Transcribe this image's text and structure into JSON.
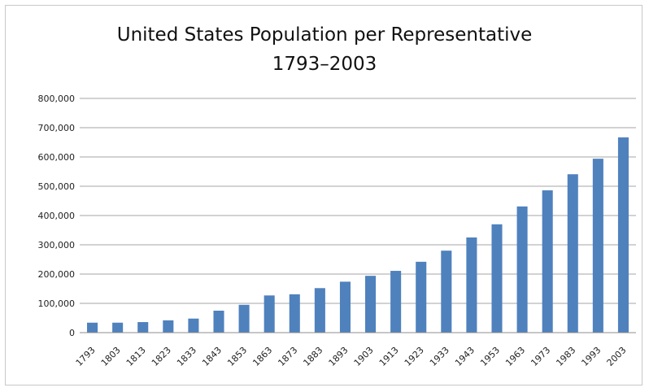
{
  "chart_data": {
    "type": "bar",
    "title": "United States Population per Representative",
    "subtitle": "1793–2003",
    "xlabel": "",
    "ylabel": "",
    "ylim": [
      0,
      800000
    ],
    "yticks": [
      0,
      100000,
      200000,
      300000,
      400000,
      500000,
      600000,
      700000,
      800000
    ],
    "ytick_labels": [
      "0",
      "100,000",
      "200,000",
      "300,000",
      "400,000",
      "500,000",
      "600,000",
      "700,000",
      "800,000"
    ],
    "grid": true,
    "legend": "none",
    "categories": [
      "1793",
      "1803",
      "1813",
      "1823",
      "1833",
      "1843",
      "1853",
      "1863",
      "1873",
      "1883",
      "1893",
      "1903",
      "1913",
      "1923",
      "1933",
      "1943",
      "1953",
      "1963",
      "1973",
      "1983",
      "1993",
      "2003"
    ],
    "values": [
      34000,
      34000,
      36000,
      42000,
      48000,
      75000,
      95000,
      127000,
      131000,
      152000,
      174000,
      194000,
      211000,
      242000,
      280000,
      325000,
      370000,
      431000,
      486000,
      541000,
      594000,
      667000
    ],
    "bar_color": "#4f81bd",
    "grid_color": "#a6a6a6"
  }
}
